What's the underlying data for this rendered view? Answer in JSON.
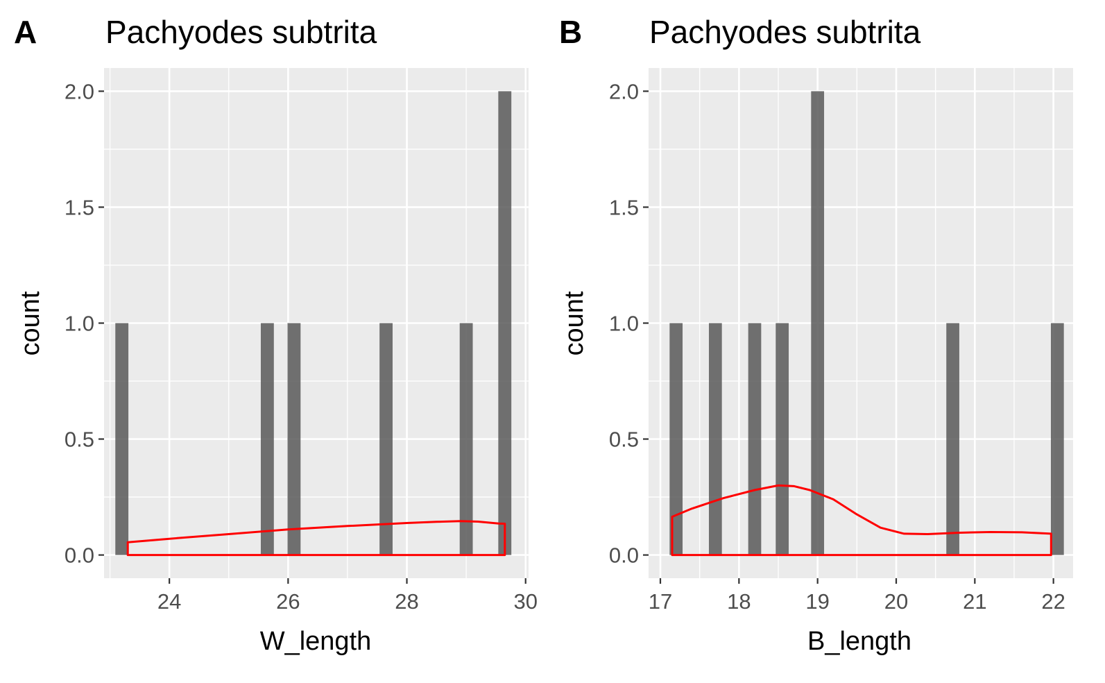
{
  "chart_data": [
    {
      "type": "bar",
      "panel_tag": "A",
      "title": "Pachyodes subtrita",
      "xlabel": "W_length",
      "ylabel": "count",
      "xlim": [
        22.9,
        30.05
      ],
      "ylim": [
        -0.1,
        2.1
      ],
      "x_ticks": [
        24,
        26,
        28,
        30
      ],
      "x_tick_labels": [
        "24",
        "26",
        "28",
        "30"
      ],
      "y_ticks": [
        0,
        0.5,
        1,
        1.5,
        2
      ],
      "y_tick_labels": [
        "0.0",
        "0.5",
        "1.0",
        "1.5",
        "2.0"
      ],
      "grid": true,
      "bar_color": "#595959",
      "bar_width": 0.22,
      "bars": [
        {
          "x": 23.2,
          "count": 1
        },
        {
          "x": 25.65,
          "count": 1
        },
        {
          "x": 26.1,
          "count": 1
        },
        {
          "x": 27.65,
          "count": 1
        },
        {
          "x": 29.0,
          "count": 1
        },
        {
          "x": 29.65,
          "count": 2
        }
      ],
      "density": {
        "color": "#ff0000",
        "points": [
          [
            23.3,
            0.055
          ],
          [
            24.0,
            0.07
          ],
          [
            25.0,
            0.09
          ],
          [
            26.0,
            0.11
          ],
          [
            27.0,
            0.125
          ],
          [
            28.0,
            0.138
          ],
          [
            28.5,
            0.143
          ],
          [
            28.9,
            0.146
          ],
          [
            29.2,
            0.144
          ],
          [
            29.55,
            0.136
          ],
          [
            29.65,
            0.135
          ]
        ]
      }
    },
    {
      "type": "bar",
      "panel_tag": "B",
      "title": "Pachyodes subtrita",
      "xlabel": "B_length",
      "ylabel": "count",
      "xlim": [
        16.85,
        22.25
      ],
      "ylim": [
        -0.1,
        2.1
      ],
      "x_ticks": [
        17,
        18,
        19,
        20,
        21,
        22
      ],
      "x_tick_labels": [
        "17",
        "18",
        "19",
        "20",
        "21",
        "22"
      ],
      "y_ticks": [
        0,
        0.5,
        1,
        1.5,
        2
      ],
      "y_tick_labels": [
        "0.0",
        "0.5",
        "1.0",
        "1.5",
        "2.0"
      ],
      "grid": true,
      "bar_color": "#595959",
      "bar_width": 0.165,
      "bars": [
        {
          "x": 17.2,
          "count": 1
        },
        {
          "x": 17.7,
          "count": 1
        },
        {
          "x": 18.2,
          "count": 1
        },
        {
          "x": 18.55,
          "count": 1
        },
        {
          "x": 19.0,
          "count": 2
        },
        {
          "x": 20.72,
          "count": 1
        },
        {
          "x": 22.05,
          "count": 1
        }
      ],
      "density": {
        "color": "#ff0000",
        "points": [
          [
            17.15,
            0.165
          ],
          [
            17.4,
            0.2
          ],
          [
            17.8,
            0.245
          ],
          [
            18.2,
            0.28
          ],
          [
            18.5,
            0.3
          ],
          [
            18.7,
            0.297
          ],
          [
            18.9,
            0.28
          ],
          [
            19.2,
            0.24
          ],
          [
            19.5,
            0.175
          ],
          [
            19.8,
            0.118
          ],
          [
            20.1,
            0.092
          ],
          [
            20.4,
            0.09
          ],
          [
            20.8,
            0.096
          ],
          [
            21.2,
            0.099
          ],
          [
            21.6,
            0.098
          ],
          [
            21.97,
            0.092
          ]
        ]
      }
    }
  ]
}
